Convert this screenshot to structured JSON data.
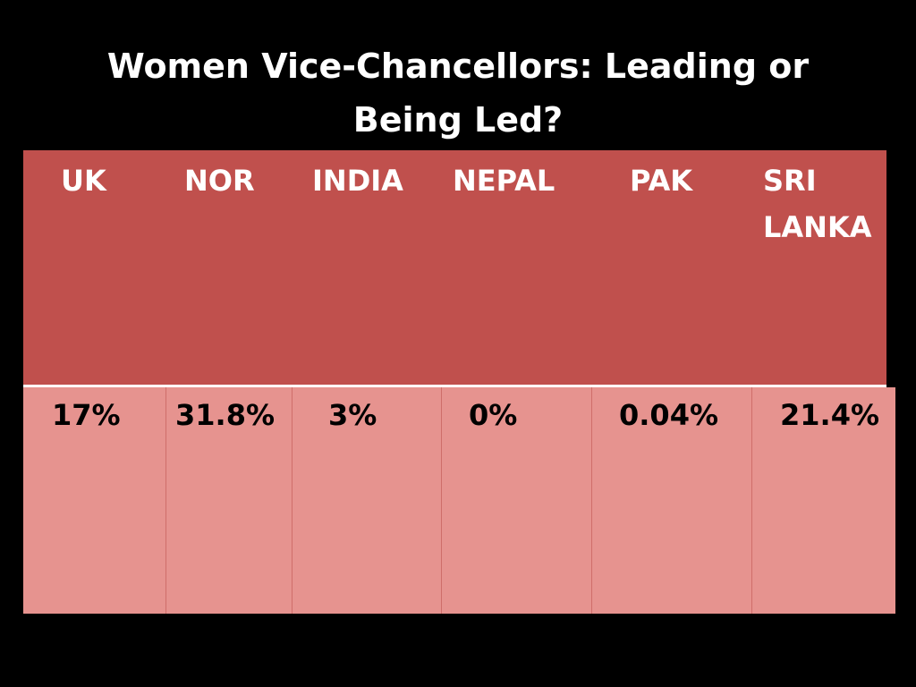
{
  "title": {
    "line1": "Women Vice-Chancellors: Leading or",
    "line2": "Being Led?"
  },
  "table": {
    "headers": [
      "UK",
      "NOR",
      "INDIA",
      "NEPAL",
      "PAK",
      "SRI LANKA"
    ],
    "values": [
      "17%",
      "31.8%",
      "3%",
      "0%",
      "0.04%",
      "21.4%"
    ]
  },
  "colors": {
    "background": "#000000",
    "header_fill": "#c0504d",
    "data_fill": "#e6938f",
    "title_text": "#ffffff"
  }
}
